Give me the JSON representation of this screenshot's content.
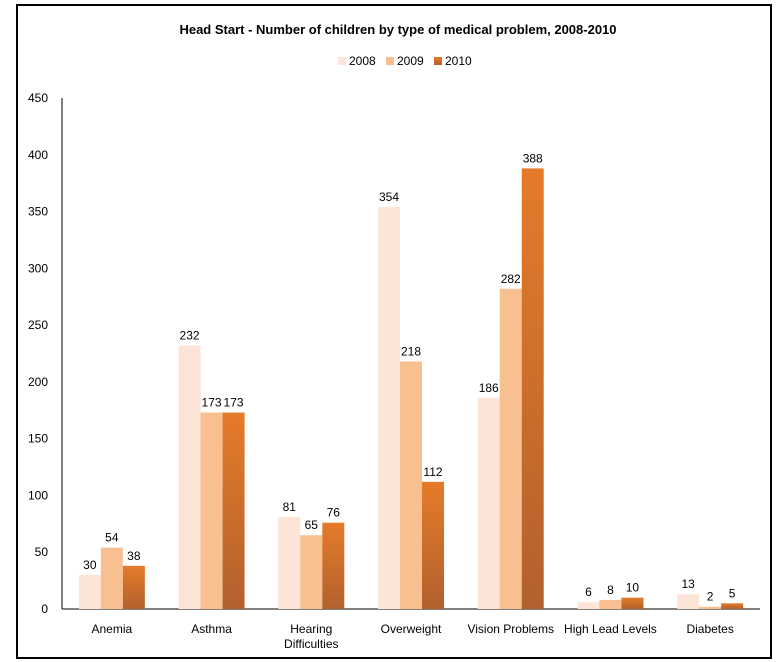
{
  "chart_data": {
    "type": "bar",
    "title": "Head Start - Number of children by type of medical problem, 2008-2010",
    "categories": [
      "Anemia",
      "Asthma",
      "Hearing Difficulties",
      "Overweight",
      "Vision Problems",
      "High Lead Levels",
      "Diabetes"
    ],
    "category_lines": [
      [
        "Anemia"
      ],
      [
        "Asthma"
      ],
      [
        "Hearing",
        "Difficulties"
      ],
      [
        "Overweight"
      ],
      [
        "Vision Problems"
      ],
      [
        "High Lead Levels"
      ],
      [
        "Diabetes"
      ]
    ],
    "series": [
      {
        "name": "2008",
        "values": [
          30,
          232,
          81,
          354,
          186,
          6,
          13
        ],
        "color": "#FCE4D6"
      },
      {
        "name": "2009",
        "values": [
          54,
          173,
          65,
          218,
          282,
          8,
          2
        ],
        "color": "#F8BF90"
      },
      {
        "name": "2010",
        "values": [
          38,
          173,
          76,
          112,
          388,
          10,
          5
        ],
        "color": "#E0782B"
      }
    ],
    "ylim": [
      0,
      450
    ],
    "yticks": [
      0,
      50,
      100,
      150,
      200,
      250,
      300,
      350,
      400,
      450
    ],
    "legend_position": "top",
    "grid": false
  }
}
